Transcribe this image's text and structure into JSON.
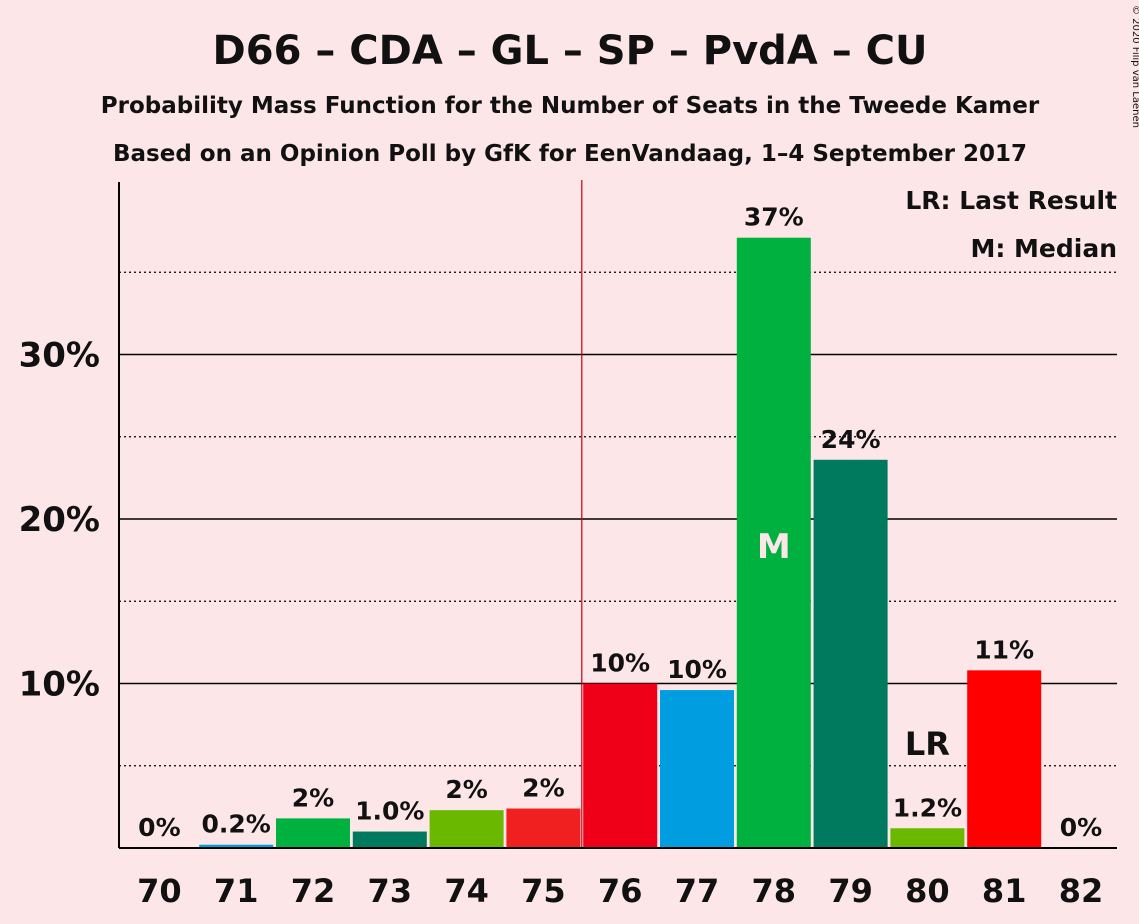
{
  "chart_data": {
    "type": "bar",
    "title": "D66 – CDA – GL – SP – PvdA – CU",
    "subtitle1": "Probability Mass Function for the Number of Seats in the Tweede Kamer",
    "subtitle2": "Based on an Opinion Poll by GfK for EenVandaag, 1–4 September 2017",
    "copyright": "© 2020 Filip van Laenen",
    "legend": {
      "lr": "LR: Last Result",
      "m": "M: Median",
      "placement": "top-right"
    },
    "categories": [
      "70",
      "71",
      "72",
      "73",
      "74",
      "75",
      "76",
      "77",
      "78",
      "79",
      "80",
      "81",
      "82"
    ],
    "values": [
      0,
      0.2,
      1.8,
      1.0,
      2.3,
      2.4,
      10.0,
      9.6,
      37.1,
      23.6,
      1.2,
      10.8,
      0
    ],
    "labels": [
      "0%",
      "0.2%",
      "2%",
      "1.0%",
      "2%",
      "2%",
      "10%",
      "10%",
      "37%",
      "24%",
      "1.2%",
      "11%",
      "0%"
    ],
    "colors": [
      "#00a0e0",
      "#00a0e0",
      "#00b140",
      "#007a5e",
      "#6ab800",
      "#f02020",
      "#f00018",
      "#009ee0",
      "#00b140",
      "#007a5e",
      "#6ab800",
      "#ff0000",
      "#00a0e0"
    ],
    "yticks": [
      10,
      20,
      30
    ],
    "ytick_labels": [
      "10%",
      "20%",
      "30%"
    ],
    "ylim": [
      0,
      40
    ],
    "majority_line_after": "75",
    "median": "78",
    "median_label": "M",
    "last_result": "80",
    "last_result_label": "LR"
  }
}
